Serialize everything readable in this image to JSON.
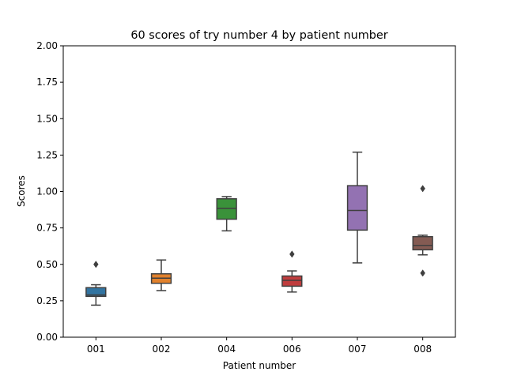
{
  "chart_data": {
    "type": "box",
    "title": "60 scores of try number 4 by patient number",
    "xlabel": "Patient number",
    "ylabel": "Scores",
    "ylim": [
      0,
      2
    ],
    "yticks": [
      "0.00",
      "0.25",
      "0.50",
      "0.75",
      "1.00",
      "1.25",
      "1.50",
      "1.75",
      "2.00"
    ],
    "grid": false,
    "categories": [
      "001",
      "002",
      "004",
      "006",
      "007",
      "008"
    ],
    "boxes": [
      {
        "category": "001",
        "color": "#3274a1",
        "whisker_low": 0.22,
        "q1": 0.28,
        "median": 0.29,
        "q3": 0.34,
        "whisker_high": 0.36,
        "outliers": [
          0.5
        ]
      },
      {
        "category": "002",
        "color": "#e1812c",
        "whisker_low": 0.32,
        "q1": 0.37,
        "median": 0.405,
        "q3": 0.435,
        "whisker_high": 0.53,
        "outliers": []
      },
      {
        "category": "004",
        "color": "#3a923a",
        "whisker_low": 0.73,
        "q1": 0.81,
        "median": 0.885,
        "q3": 0.95,
        "whisker_high": 0.965,
        "outliers": []
      },
      {
        "category": "006",
        "color": "#c03d3e",
        "whisker_low": 0.31,
        "q1": 0.35,
        "median": 0.39,
        "q3": 0.42,
        "whisker_high": 0.455,
        "outliers": [
          0.57
        ]
      },
      {
        "category": "007",
        "color": "#9372b2",
        "whisker_low": 0.51,
        "q1": 0.735,
        "median": 0.87,
        "q3": 1.04,
        "whisker_high": 1.27,
        "outliers": []
      },
      {
        "category": "008",
        "color": "#845b53",
        "whisker_low": 0.565,
        "q1": 0.6,
        "median": 0.63,
        "q3": 0.69,
        "whisker_high": 0.7,
        "outliers": [
          1.02,
          0.44
        ]
      }
    ]
  }
}
